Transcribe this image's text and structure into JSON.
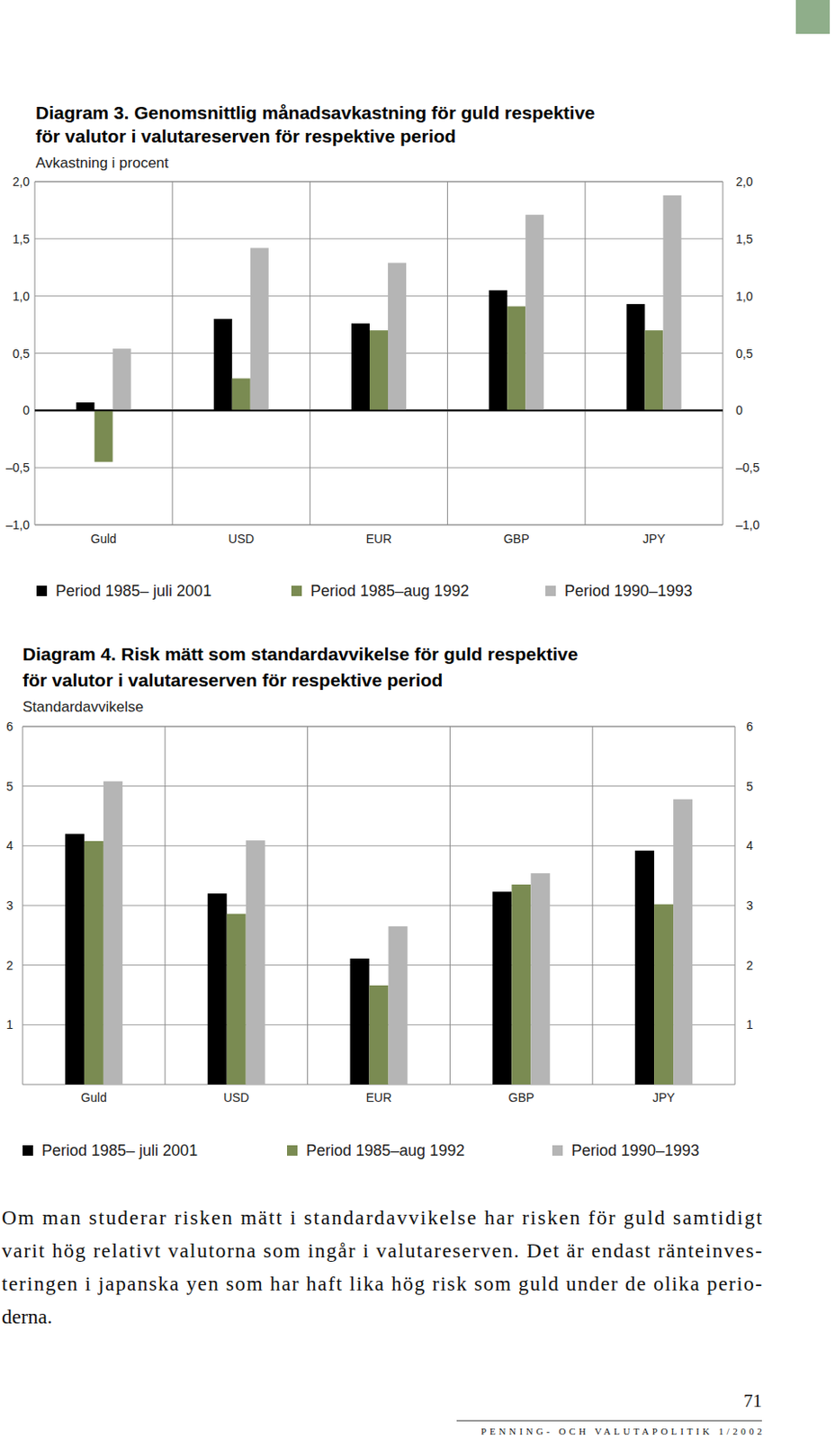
{
  "chart_data": [
    {
      "type": "bar",
      "title": [
        "Diagram 3. Genomsnittlig månadsavkastning för guld respektive",
        "för valutor i valutareserven för respektive period"
      ],
      "ylabel": "Avkastning i procent",
      "categories": [
        "Guld",
        "USD",
        "EUR",
        "GBP",
        "JPY"
      ],
      "series": [
        {
          "name": "Period 1985– juli 2001",
          "color": "#000000",
          "values": [
            0.07,
            0.8,
            0.76,
            1.05,
            0.93
          ]
        },
        {
          "name": "Period 1985–aug 1992",
          "color": "#7a8b52",
          "values": [
            -0.45,
            0.28,
            0.7,
            0.91,
            0.7
          ]
        },
        {
          "name": "Period 1990–1993",
          "color": "#b5b5b5",
          "values": [
            0.54,
            1.42,
            1.29,
            1.71,
            1.88
          ]
        }
      ],
      "ylim": [
        -1,
        2
      ],
      "yticks": [
        {
          "value": -1,
          "label": "–1,0"
        },
        {
          "value": -0.5,
          "label": "–0,5"
        },
        0,
        {
          "value": 0.5,
          "label": "0,5"
        },
        {
          "value": 1,
          "label": "1,0"
        },
        {
          "value": 1.5,
          "label": "1,5"
        },
        {
          "value": 2,
          "label": "2,0"
        }
      ],
      "grid": true,
      "legend": "bottom"
    },
    {
      "type": "bar",
      "title": [
        "Diagram 4. Risk mätt som standardavvikelse för guld respektive",
        "för valutor i valutareserven för respektive period"
      ],
      "ylabel": "Standardavvikelse",
      "categories": [
        "Guld",
        "USD",
        "EUR",
        "GBP",
        "JPY"
      ],
      "series": [
        {
          "name": "Period 1985– juli 2001",
          "color": "#000000",
          "values": [
            4.2,
            3.2,
            2.11,
            3.23,
            3.92
          ]
        },
        {
          "name": "Period 1985–aug 1992",
          "color": "#7a8b52",
          "values": [
            4.08,
            2.86,
            1.66,
            3.35,
            3.02
          ]
        },
        {
          "name": "Period 1990–1993",
          "color": "#b5b5b5",
          "values": [
            5.08,
            4.09,
            2.65,
            3.54,
            4.78
          ]
        }
      ],
      "ylim": [
        0,
        6
      ],
      "yticks": [
        1,
        2,
        3,
        4,
        5,
        6
      ],
      "grid": true,
      "legend": "bottom"
    }
  ],
  "body_text": [
    "Om man studerar risken mätt i standardavvikelse har risken för guld samtidigt",
    "varit hög relativt valutorna som ingår i valutareserven. Det är endast räntеinves-",
    "teringen i japanska yen som har haft lika hög risk som guld under de olika perio-",
    "derna."
  ],
  "footer": {
    "page_number": "71",
    "journal": "PENNING- OCH VALUTAPOLITIK 1/2002"
  }
}
